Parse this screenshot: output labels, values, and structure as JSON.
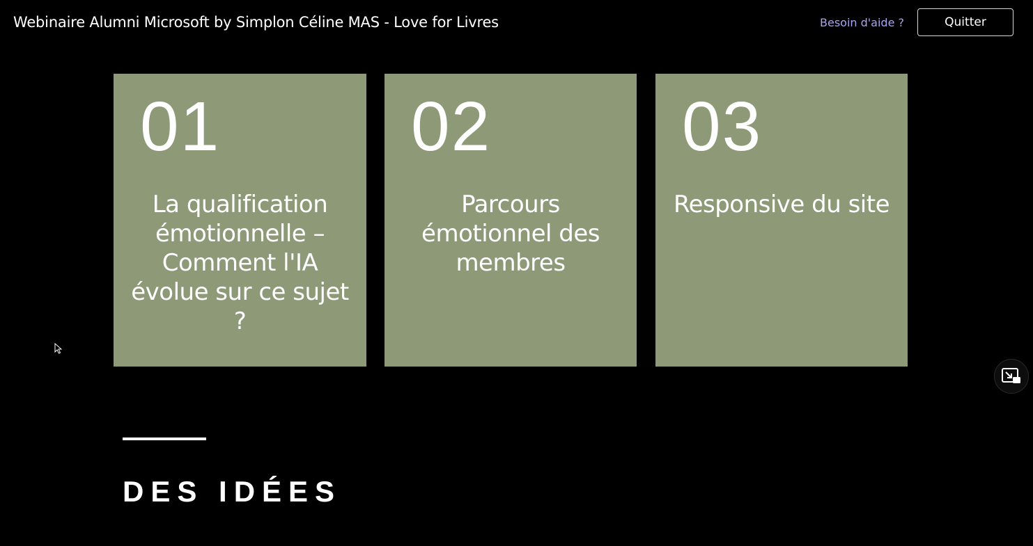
{
  "header": {
    "title": "Webinaire Alumni Microsoft by Simplon Céline MAS - Love for Livres",
    "help_link": "Besoin d'aide ?",
    "quit_label": "Quitter"
  },
  "slide": {
    "cards": [
      {
        "number": "01",
        "text": "La qualification émotionnelle – Comment l'IA évolue sur ce sujet ?"
      },
      {
        "number": "02",
        "text": "Parcours émotionnel des membres"
      },
      {
        "number": "03",
        "text": "Responsive du site"
      }
    ],
    "section_heading": "DES IDÉES"
  },
  "colors": {
    "background": "#000000",
    "card": "#8d9977",
    "link": "#a9a4f2"
  },
  "icons": {
    "pip": "picture-in-picture-icon",
    "cursor": "mouse-cursor-icon"
  }
}
